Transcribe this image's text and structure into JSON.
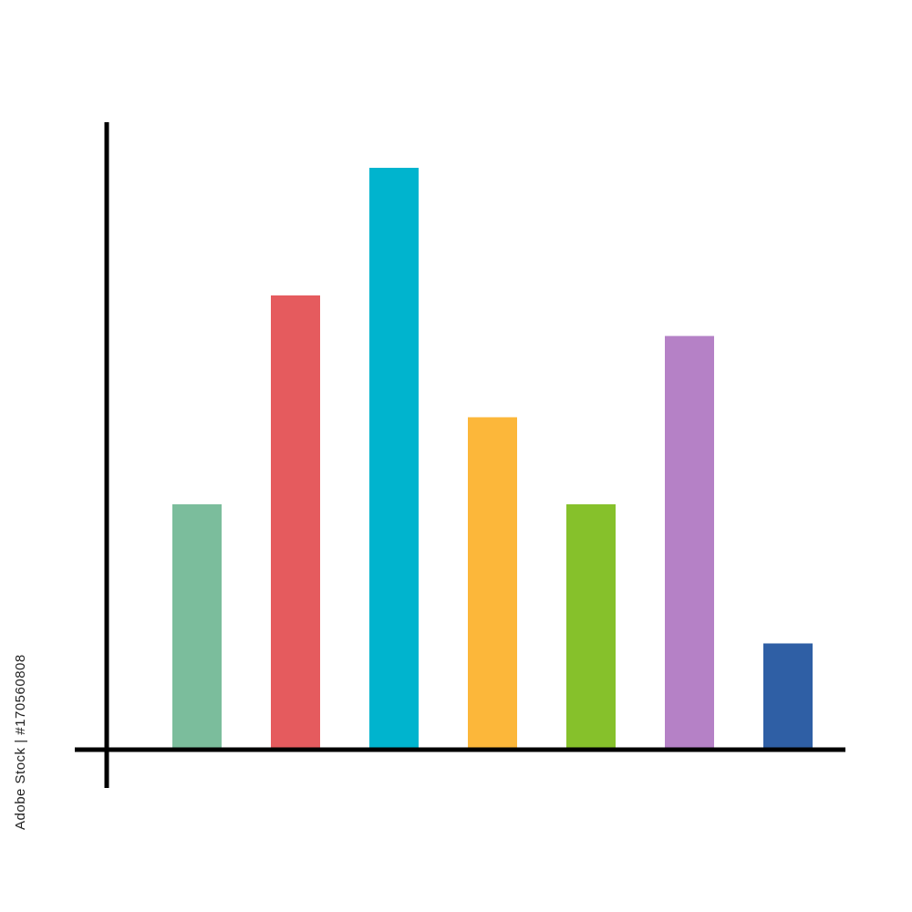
{
  "watermark": {
    "stock_id": "170560808"
  },
  "chart_data": {
    "type": "bar",
    "title": "",
    "xlabel": "",
    "ylabel": "",
    "grid": false,
    "legend": "none",
    "ylim": [
      0,
      100
    ],
    "bars": [
      {
        "value": 42,
        "color": "#7BBD9C"
      },
      {
        "value": 78,
        "color": "#E55B5E"
      },
      {
        "value": 100,
        "color": "#00B4CE"
      },
      {
        "value": 57,
        "color": "#FCB73A"
      },
      {
        "value": 42,
        "color": "#86C12B"
      },
      {
        "value": 71,
        "color": "#B581C6"
      },
      {
        "value": 18,
        "color": "#2F5FA5"
      }
    ],
    "axis_color": "#000000"
  }
}
